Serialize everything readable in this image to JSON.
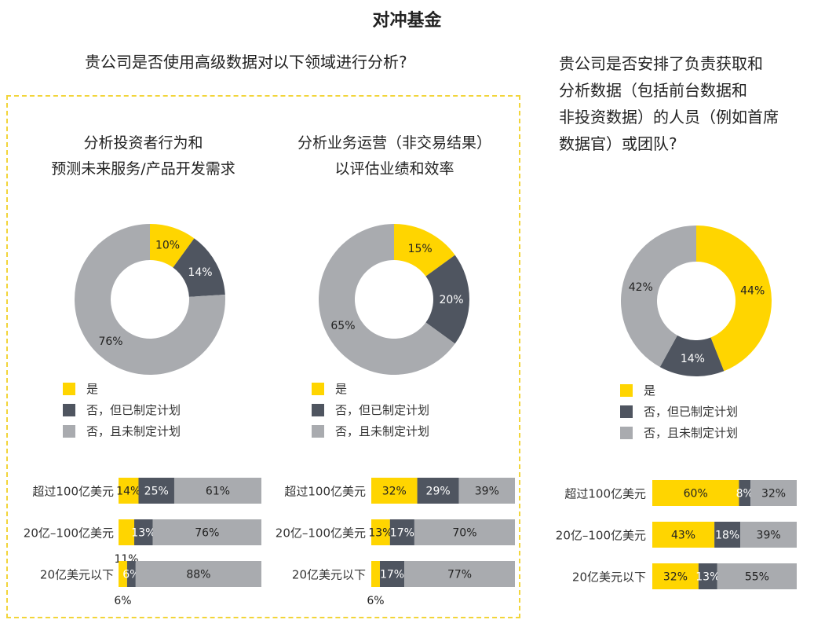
{
  "page_title": "对冲基金",
  "left_question": "贵公司是否使用高级数据对以下领域进行分析?",
  "right_question": {
    "lines": [
      "贵公司是否安排了负责获取和",
      "分析数据（包括前台数据和",
      "非投资数据）的人员（例如首席",
      "数据官）或团队?"
    ]
  },
  "legend": [
    "是",
    "否，但已制定计划",
    "否，且未制定计划"
  ],
  "colors": {
    "yes": "#ffd500",
    "planned": "#4f5560",
    "not_planned": "#a9abaf",
    "dashed_border": "#f2d53a"
  },
  "panels": [
    {
      "title_lines": [
        "分析投资者行为和",
        "预测未来服务/产品开发需求"
      ]
    },
    {
      "title_lines": [
        "分析业务运营（非交易结果）",
        "以评估业绩和效率"
      ]
    },
    {
      "title_lines": []
    }
  ],
  "chart_data": [
    {
      "type": "pie",
      "title": "分析投资者行为和 预测未来服务/产品开发需求",
      "labels": [
        "是",
        "否，但已制定计划",
        "否，且未制定计划"
      ],
      "values": [
        10,
        14,
        76
      ],
      "value_labels": [
        "10%",
        "14%",
        "76%"
      ]
    },
    {
      "type": "pie",
      "title": "分析业务运营（非交易结果） 以评估业绩和效率",
      "labels": [
        "是",
        "否，但已制定计划",
        "否，且未制定计划"
      ],
      "values": [
        15,
        20,
        65
      ],
      "value_labels": [
        "15%",
        "20%",
        "65%"
      ]
    },
    {
      "type": "pie",
      "title": "贵公司是否安排了负责获取和分析数据（包括前台数据和非投资数据）的人员（例如首席数据官）或团队?",
      "labels": [
        "是",
        "否，但已制定计划",
        "否，且未制定计划"
      ],
      "values": [
        44,
        14,
        42
      ],
      "value_labels": [
        "44%",
        "14%",
        "42%"
      ]
    },
    {
      "type": "bar",
      "orientation": "horizontal-stacked",
      "categories": [
        "超过100亿美元",
        "20亿–100亿美元",
        "20亿美元以下"
      ],
      "series": [
        {
          "name": "是",
          "values": [
            14,
            11,
            6
          ],
          "value_labels": [
            "14%",
            "11%",
            "6%"
          ]
        },
        {
          "name": "否，但已制定计划",
          "values": [
            25,
            13,
            6
          ],
          "value_labels": [
            "25%",
            "13%",
            "6%"
          ]
        },
        {
          "name": "否，且未制定计划",
          "values": [
            61,
            76,
            88
          ],
          "value_labels": [
            "61%",
            "76%",
            "88%"
          ]
        }
      ]
    },
    {
      "type": "bar",
      "orientation": "horizontal-stacked",
      "categories": [
        "超过100亿美元",
        "20亿–100亿美元",
        "20亿美元以下"
      ],
      "series": [
        {
          "name": "是",
          "values": [
            32,
            13,
            6
          ],
          "value_labels": [
            "32%",
            "13%",
            "6%"
          ]
        },
        {
          "name": "否，但已制定计划",
          "values": [
            29,
            17,
            17
          ],
          "value_labels": [
            "29%",
            "17%",
            "17%"
          ]
        },
        {
          "name": "否，且未制定计划",
          "values": [
            39,
            70,
            77
          ],
          "value_labels": [
            "39%",
            "70%",
            "77%"
          ]
        }
      ]
    },
    {
      "type": "bar",
      "orientation": "horizontal-stacked",
      "categories": [
        "超过100亿美元",
        "20亿–100亿美元",
        "20亿美元以下"
      ],
      "series": [
        {
          "name": "是",
          "values": [
            60,
            43,
            32
          ],
          "value_labels": [
            "60%",
            "43%",
            "32%"
          ]
        },
        {
          "name": "否，但已制定计划",
          "values": [
            8,
            18,
            13
          ],
          "value_labels": [
            "8%",
            "18%",
            "13%"
          ]
        },
        {
          "name": "否，且未制定计划",
          "values": [
            32,
            39,
            55
          ],
          "value_labels": [
            "32%",
            "39%",
            "55%"
          ]
        }
      ]
    }
  ]
}
